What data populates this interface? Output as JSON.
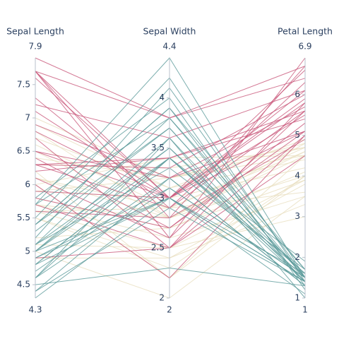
{
  "chart_data": {
    "type": "parallel",
    "dimensions": [
      {
        "label": "Sepal Length",
        "range": [
          4.3,
          7.9
        ],
        "ticks": [
          4.5,
          5,
          5.5,
          6,
          6.5,
          7,
          7.5
        ]
      },
      {
        "label": "Sepal Width",
        "range": [
          2,
          4.4
        ],
        "ticks": [
          2,
          2.5,
          3,
          3.5,
          4
        ]
      },
      {
        "label": "Petal Length",
        "range": [
          1,
          6.9
        ],
        "ticks": [
          1,
          2,
          3,
          4,
          5,
          6
        ]
      }
    ],
    "groups": [
      {
        "color": "#e9dfbf",
        "lines": [
          [
            7.0,
            3.2,
            4.7
          ],
          [
            6.4,
            3.2,
            4.5
          ],
          [
            6.9,
            3.1,
            4.9
          ],
          [
            5.5,
            2.3,
            4.0
          ],
          [
            6.5,
            2.8,
            4.6
          ],
          [
            5.7,
            2.8,
            4.5
          ],
          [
            6.3,
            3.3,
            4.7
          ],
          [
            4.9,
            2.4,
            3.3
          ],
          [
            6.6,
            2.9,
            4.6
          ],
          [
            5.2,
            2.7,
            3.9
          ],
          [
            5.0,
            2.0,
            3.5
          ],
          [
            5.9,
            3.0,
            4.2
          ],
          [
            6.0,
            2.2,
            4.0
          ],
          [
            6.1,
            2.9,
            4.7
          ],
          [
            5.6,
            2.9,
            3.6
          ],
          [
            6.7,
            3.1,
            4.4
          ],
          [
            5.8,
            2.7,
            4.1
          ],
          [
            6.2,
            2.2,
            4.5
          ],
          [
            5.6,
            2.5,
            3.9
          ],
          [
            5.9,
            3.2,
            4.8
          ],
          [
            6.1,
            2.8,
            4.0
          ],
          [
            6.8,
            2.8,
            4.8
          ],
          [
            5.5,
            2.4,
            3.8
          ],
          [
            6.0,
            3.4,
            4.5
          ],
          [
            5.1,
            2.5,
            3.0
          ],
          [
            5.7,
            2.6,
            3.5
          ]
        ]
      },
      {
        "color": "#c9577a",
        "lines": [
          [
            6.3,
            3.3,
            6.0
          ],
          [
            5.8,
            2.7,
            5.1
          ],
          [
            7.1,
            3.0,
            5.9
          ],
          [
            6.3,
            2.9,
            5.6
          ],
          [
            6.5,
            3.0,
            5.8
          ],
          [
            7.6,
            3.0,
            6.6
          ],
          [
            4.9,
            2.5,
            4.5
          ],
          [
            7.3,
            2.9,
            6.3
          ],
          [
            6.7,
            2.5,
            5.8
          ],
          [
            7.2,
            3.6,
            6.1
          ],
          [
            6.5,
            3.2,
            5.1
          ],
          [
            6.4,
            2.7,
            5.3
          ],
          [
            6.8,
            3.0,
            5.5
          ],
          [
            5.7,
            2.5,
            5.0
          ],
          [
            7.7,
            3.8,
            6.7
          ],
          [
            7.7,
            2.6,
            6.9
          ],
          [
            6.0,
            2.2,
            5.0
          ],
          [
            6.9,
            3.2,
            5.7
          ],
          [
            5.6,
            2.8,
            4.9
          ],
          [
            7.7,
            2.8,
            6.7
          ],
          [
            7.9,
            3.8,
            6.4
          ],
          [
            6.1,
            2.6,
            5.6
          ],
          [
            7.7,
            3.0,
            6.1
          ],
          [
            6.3,
            3.4,
            5.6
          ],
          [
            6.2,
            3.4,
            5.4
          ],
          [
            5.9,
            3.0,
            5.1
          ]
        ]
      },
      {
        "color": "#5c9b9b",
        "lines": [
          [
            5.1,
            3.5,
            1.4
          ],
          [
            4.9,
            3.0,
            1.4
          ],
          [
            4.7,
            3.2,
            1.3
          ],
          [
            4.6,
            3.1,
            1.5
          ],
          [
            5.0,
            3.6,
            1.4
          ],
          [
            5.4,
            3.9,
            1.7
          ],
          [
            4.6,
            3.4,
            1.4
          ],
          [
            5.0,
            3.4,
            1.5
          ],
          [
            4.4,
            2.9,
            1.4
          ],
          [
            4.9,
            3.1,
            1.5
          ],
          [
            5.4,
            3.7,
            1.5
          ],
          [
            4.8,
            3.4,
            1.6
          ],
          [
            4.8,
            3.0,
            1.4
          ],
          [
            4.3,
            3.0,
            1.1
          ],
          [
            5.8,
            4.0,
            1.2
          ],
          [
            5.7,
            4.4,
            1.5
          ],
          [
            5.4,
            3.9,
            1.3
          ],
          [
            5.7,
            3.8,
            1.7
          ],
          [
            5.1,
            3.8,
            1.5
          ],
          [
            5.2,
            4.1,
            1.5
          ],
          [
            5.5,
            4.2,
            1.4
          ],
          [
            4.5,
            2.3,
            1.3
          ],
          [
            5.0,
            3.5,
            1.6
          ],
          [
            5.3,
            3.7,
            1.5
          ],
          [
            4.6,
            3.6,
            1.0
          ],
          [
            5.1,
            3.3,
            1.7
          ],
          [
            4.8,
            3.4,
            1.9
          ],
          [
            4.4,
            3.2,
            1.3
          ],
          [
            5.0,
            3.0,
            1.6
          ]
        ]
      }
    ]
  }
}
